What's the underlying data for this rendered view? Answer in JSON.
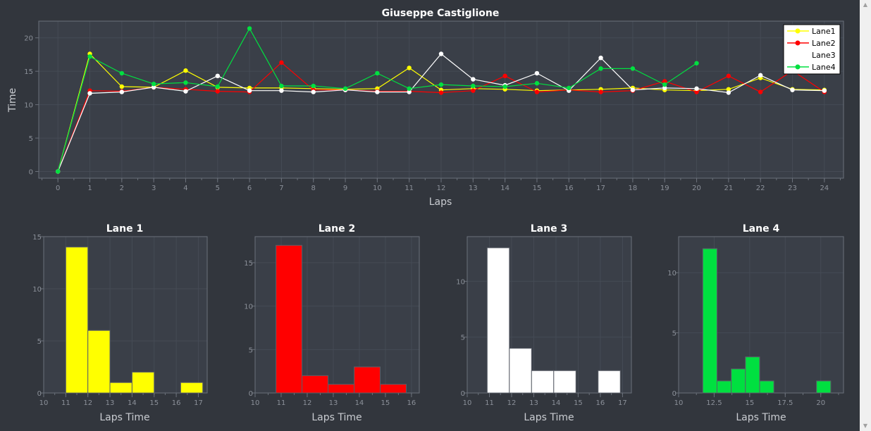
{
  "colors": {
    "background": "#32363d",
    "plot_background": "#3a3f48",
    "grid": "#454b55",
    "axis": "#6a707a",
    "tick_text": "#8b9099",
    "title_text": "#ffffff",
    "label_text": "#c9ccd1",
    "lane1": "#ffff00",
    "lane2": "#ff0000",
    "lane3": "#ffffff",
    "lane4": "#00e040"
  },
  "chart_data": [
    {
      "type": "line",
      "title": "Giuseppe Castiglione",
      "xlabel": "Laps",
      "ylabel": "Time",
      "xlim": [
        -0.6,
        24.6
      ],
      "ylim": [
        -1,
        22.5
      ],
      "x_ticks": [
        0,
        1,
        2,
        3,
        4,
        5,
        6,
        7,
        8,
        9,
        10,
        11,
        12,
        13,
        14,
        15,
        16,
        17,
        18,
        19,
        20,
        21,
        22,
        23,
        24
      ],
      "y_ticks": [
        0,
        5,
        10,
        15,
        20
      ],
      "grid": true,
      "legend_position": "top-right",
      "series": [
        {
          "name": "Lane1",
          "color_key": "lane1",
          "x": [
            0,
            1,
            2,
            3,
            4,
            5,
            6,
            7,
            8,
            9,
            10,
            11,
            12,
            13,
            14,
            15,
            16,
            17,
            18,
            19,
            20,
            21,
            22,
            23,
            24
          ],
          "y": [
            0,
            17.6,
            12.7,
            12.6,
            15.1,
            12.6,
            12.5,
            12.5,
            12.4,
            12.3,
            12.4,
            15.5,
            12.2,
            12.4,
            12.3,
            12.1,
            12.2,
            12.3,
            12.5,
            12.2,
            12.1,
            12.3,
            14.0,
            12.3,
            12.2
          ]
        },
        {
          "name": "Lane2",
          "color_key": "lane2",
          "x": [
            0,
            1,
            2,
            3,
            4,
            5,
            6,
            7,
            8,
            9,
            10,
            11,
            12,
            13,
            14,
            15,
            16,
            17,
            18,
            19,
            20,
            21,
            22,
            23,
            24
          ],
          "y": [
            0,
            12.1,
            12.0,
            12.6,
            12.3,
            12.0,
            11.9,
            16.3,
            12.2,
            12.2,
            12.0,
            12.0,
            11.8,
            12.1,
            14.3,
            11.9,
            12.2,
            11.9,
            12.1,
            13.5,
            11.9,
            14.3,
            11.9,
            15.1,
            11.9
          ]
        },
        {
          "name": "Lane3",
          "color_key": "lane3",
          "line": false,
          "x": [
            0,
            1,
            2,
            3,
            4,
            5,
            6,
            7,
            8,
            9,
            10,
            11,
            12,
            13,
            14,
            15,
            16,
            17,
            18,
            19,
            20,
            21,
            22,
            23,
            24
          ],
          "y": [
            0,
            11.7,
            11.9,
            12.6,
            12.0,
            14.3,
            12.1,
            12.1,
            11.9,
            12.2,
            11.9,
            11.9,
            17.6,
            13.8,
            12.9,
            14.7,
            12.1,
            17.0,
            12.2,
            12.5,
            12.4,
            11.8,
            14.4,
            12.2,
            12.1
          ]
        },
        {
          "name": "Lane4",
          "color_key": "lane4",
          "x": [
            0,
            1,
            2,
            3,
            4,
            5,
            6,
            7,
            8,
            9,
            10,
            11,
            12,
            13,
            14,
            15,
            16,
            17,
            18,
            19,
            20
          ],
          "y": [
            0,
            17.2,
            14.7,
            13.1,
            13.3,
            12.7,
            21.4,
            12.8,
            12.8,
            12.4,
            14.7,
            12.4,
            13.0,
            12.8,
            12.7,
            13.2,
            12.5,
            15.4,
            15.4,
            13.0,
            16.2
          ]
        }
      ]
    },
    {
      "type": "bar",
      "title": "Lane 1",
      "xlabel": "Laps Time",
      "color_key": "lane1",
      "xlim": [
        10,
        17.4
      ],
      "ylim": [
        0,
        15
      ],
      "x_ticks": [
        10,
        11,
        12,
        13,
        14,
        15,
        16,
        17
      ],
      "x_tick_labels": [
        "10",
        "11",
        "12",
        "13",
        "14",
        "15",
        "16",
        "17"
      ],
      "y_ticks": [
        0,
        5,
        10,
        15
      ],
      "bins": [
        [
          11.0,
          12.0
        ],
        [
          12.0,
          13.0
        ],
        [
          13.0,
          14.0
        ],
        [
          14.0,
          15.0
        ],
        [
          15.0,
          16.0
        ],
        [
          16.2,
          17.2
        ]
      ],
      "values": [
        14,
        6,
        1,
        2,
        0,
        1
      ]
    },
    {
      "type": "bar",
      "title": "Lane 2",
      "xlabel": "Laps Time",
      "color_key": "lane2",
      "xlim": [
        10,
        16.3
      ],
      "ylim": [
        0,
        18
      ],
      "x_ticks": [
        10,
        11,
        12,
        13,
        14,
        15,
        16
      ],
      "x_tick_labels": [
        "10",
        "11",
        "12",
        "13",
        "14",
        "15",
        "16"
      ],
      "y_ticks": [
        0,
        5,
        10,
        15
      ],
      "bins": [
        [
          10.8,
          11.8
        ],
        [
          11.8,
          12.8
        ],
        [
          12.8,
          13.8
        ],
        [
          13.8,
          14.8
        ],
        [
          14.8,
          15.8
        ]
      ],
      "values": [
        17,
        2,
        1,
        3,
        1
      ]
    },
    {
      "type": "bar",
      "title": "Lane 3",
      "xlabel": "Laps Time",
      "color_key": "lane3",
      "xlim": [
        10,
        17.4
      ],
      "ylim": [
        0,
        14
      ],
      "x_ticks": [
        10,
        11,
        12,
        13,
        14,
        15,
        16,
        17
      ],
      "x_tick_labels": [
        "10",
        "11",
        "12",
        "13",
        "14",
        "15",
        "16",
        "17"
      ],
      "y_ticks": [
        0,
        5,
        10
      ],
      "bins": [
        [
          10.9,
          11.9
        ],
        [
          11.9,
          12.9
        ],
        [
          12.9,
          13.9
        ],
        [
          13.9,
          14.9
        ],
        [
          14.9,
          15.9
        ],
        [
          15.9,
          16.9
        ]
      ],
      "values": [
        13,
        4,
        2,
        2,
        0,
        2
      ]
    },
    {
      "type": "bar",
      "title": "Lane 4",
      "xlabel": "Laps Time",
      "color_key": "lane4",
      "xlim": [
        10,
        21.6
      ],
      "ylim": [
        0,
        13
      ],
      "x_ticks": [
        10,
        12.5,
        15,
        17.5,
        20
      ],
      "x_tick_labels": [
        "10",
        "12.5",
        "15",
        "17.5",
        "20"
      ],
      "y_ticks": [
        0,
        5,
        10
      ],
      "bins": [
        [
          11.7,
          12.7
        ],
        [
          12.7,
          13.7
        ],
        [
          13.7,
          14.7
        ],
        [
          14.7,
          15.7
        ],
        [
          15.7,
          16.7
        ],
        [
          16.7,
          17.7
        ],
        [
          17.7,
          18.7
        ],
        [
          18.7,
          19.7
        ],
        [
          19.7,
          20.7
        ]
      ],
      "values": [
        12,
        1,
        2,
        3,
        1,
        0,
        0,
        0,
        1
      ]
    }
  ]
}
